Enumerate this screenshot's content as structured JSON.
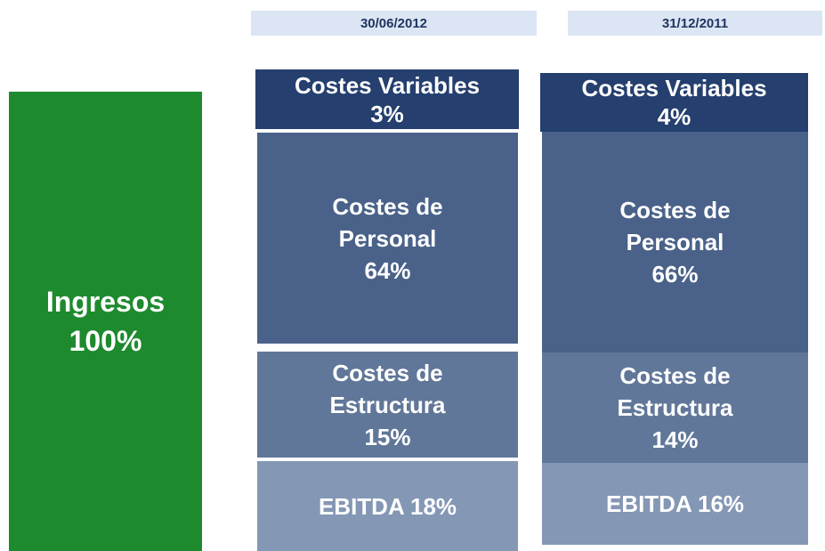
{
  "total": {
    "lines": [
      "Ingresos",
      "100%"
    ]
  },
  "columns": [
    {
      "header": "30/06/2012",
      "blocks": [
        {
          "lines": [
            "Costes Variables",
            "3%"
          ]
        },
        {
          "lines": [
            "Costes de",
            "Personal",
            "64%"
          ]
        },
        {
          "lines": [
            "Costes de",
            "Estructura",
            "15%"
          ]
        },
        {
          "lines": [
            "EBITDA 18%"
          ]
        }
      ]
    },
    {
      "header": "31/12/2011",
      "blocks": [
        {
          "lines": [
            "Costes Variables",
            "4%"
          ]
        },
        {
          "lines": [
            "Costes de",
            "Personal",
            "66%"
          ]
        },
        {
          "lines": [
            "Costes de",
            "Estructura",
            "14%"
          ]
        },
        {
          "lines": [
            "EBITDA 16%"
          ]
        }
      ]
    }
  ]
}
